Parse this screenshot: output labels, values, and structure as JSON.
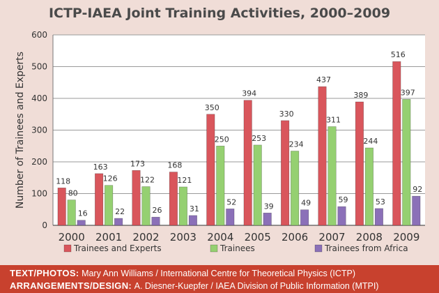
{
  "chart_data": {
    "type": "bar",
    "title": "ICTP-IAEA Joint Training Activities, 2000–2009",
    "ylabel": "Number of Trainees and Experts",
    "xlabel": "",
    "ylim": [
      0,
      600
    ],
    "yticks": [
      0,
      100,
      200,
      300,
      400,
      500,
      600
    ],
    "grid": true,
    "legend_position": "bottom",
    "categories": [
      "2000",
      "2001",
      "2002",
      "2003",
      "2004",
      "2005",
      "2006",
      "2007",
      "2008",
      "2009"
    ],
    "series": [
      {
        "name": "Trainees and Experts",
        "color": "#d9565c",
        "values": [
          118,
          163,
          173,
          168,
          350,
          394,
          330,
          437,
          389,
          516
        ]
      },
      {
        "name": "Trainees",
        "color": "#95d071",
        "values": [
          80,
          126,
          122,
          121,
          250,
          253,
          234,
          311,
          244,
          397
        ]
      },
      {
        "name": "Trainees from Africa",
        "color": "#8b70b8",
        "values": [
          16,
          22,
          26,
          31,
          52,
          39,
          49,
          59,
          53,
          92
        ]
      }
    ]
  },
  "footer": {
    "text_label": "TEXT/PHOTOS:",
    "text_value": "Mary Ann Williams / International Centre for Theoretical Physics (ICTP)",
    "design_label": "ARRANGEMENTS/DESIGN:",
    "design_value": "A. Diesner-Kuepfer / IAEA Division of Public Information (MTPI)"
  }
}
